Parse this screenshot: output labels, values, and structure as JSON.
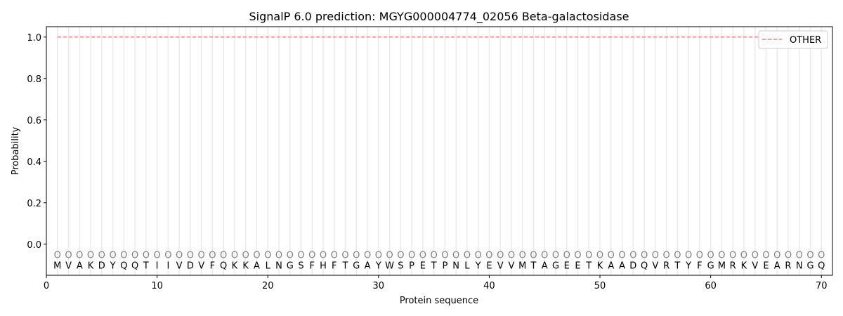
{
  "chart_data": {
    "type": "line",
    "title": "SignalP 6.0 prediction: MGYG000004774_02056 Beta-galactosidase",
    "xlabel": "Protein sequence",
    "ylabel": "Probability",
    "xlim": [
      0,
      71
    ],
    "ylim": [
      -0.15,
      1.05
    ],
    "xticks": [
      0,
      10,
      20,
      30,
      40,
      50,
      60,
      70
    ],
    "yticks": [
      0.0,
      0.2,
      0.4,
      0.6,
      0.8,
      1.0
    ],
    "ytick_labels": [
      "0.0",
      "0.2",
      "0.4",
      "0.6",
      "0.8",
      "1.0"
    ],
    "grid": "vertical lines at each residue",
    "legend_placement": "top-right",
    "sequence": [
      "M",
      "V",
      "A",
      "K",
      "D",
      "Y",
      "Q",
      "Q",
      "T",
      "I",
      "I",
      "V",
      "D",
      "V",
      "F",
      "Q",
      "K",
      "K",
      "A",
      "L",
      "N",
      "G",
      "S",
      "F",
      "H",
      "F",
      "T",
      "G",
      "A",
      "Y",
      "W",
      "S",
      "P",
      "E",
      "T",
      "P",
      "N",
      "L",
      "Y",
      "E",
      "V",
      "V",
      "M",
      "T",
      "A",
      "G",
      "E",
      "E",
      "T",
      "K",
      "A",
      "A",
      "D",
      "Q",
      "V",
      "R",
      "T",
      "Y",
      "F",
      "G",
      "M",
      "R",
      "K",
      "V",
      "E",
      "A",
      "R",
      "N",
      "G",
      "Q"
    ],
    "predicted_labels": "OOOOOOOOOOOOOOOOOOOOOOOOOOOOOOOOOOOOOOOOOOOOOOOOOOOOOOOOOOOOOOOOOOOOOO",
    "series": [
      {
        "name": "OTHER",
        "color": "#f08080",
        "style": "dashed",
        "x_range": [
          1,
          70
        ],
        "value": 1.0
      }
    ]
  }
}
